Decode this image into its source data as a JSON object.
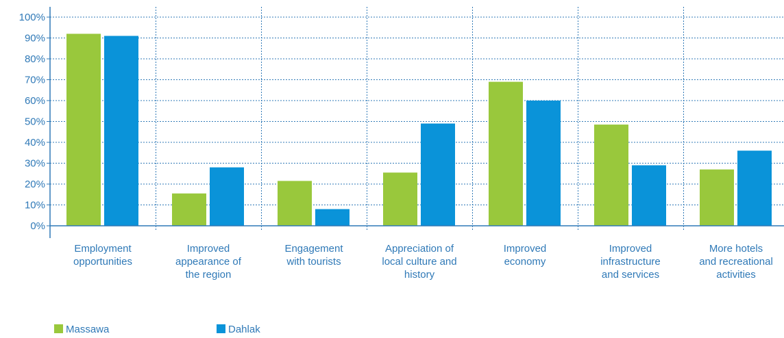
{
  "chart_data": {
    "type": "bar",
    "categories": [
      [
        "Employment",
        "opportunities"
      ],
      [
        "Improved",
        "appearance of",
        "the region"
      ],
      [
        "Engagement",
        "with tourists"
      ],
      [
        "Appreciation of",
        "local culture and",
        "history"
      ],
      [
        "Improved",
        "economy"
      ],
      [
        "Improved",
        "infrastructure",
        "and services"
      ],
      [
        "More hotels",
        "and recreational",
        "activities"
      ]
    ],
    "series": [
      {
        "name": "Massawa",
        "color": "#99c83c",
        "values": [
          92,
          15.5,
          21.5,
          25.5,
          69,
          48.5,
          27
        ]
      },
      {
        "name": "Dahlak",
        "color": "#0a93d9",
        "values": [
          91,
          28,
          8,
          49,
          60,
          29,
          36
        ]
      }
    ],
    "yticks": [
      "0%",
      "10%",
      "20%",
      "30%",
      "40%",
      "50%",
      "60%",
      "70%",
      "80%",
      "90%",
      "100%"
    ],
    "ylim": [
      0,
      100
    ],
    "grid": true,
    "legend": "bottom-left"
  }
}
